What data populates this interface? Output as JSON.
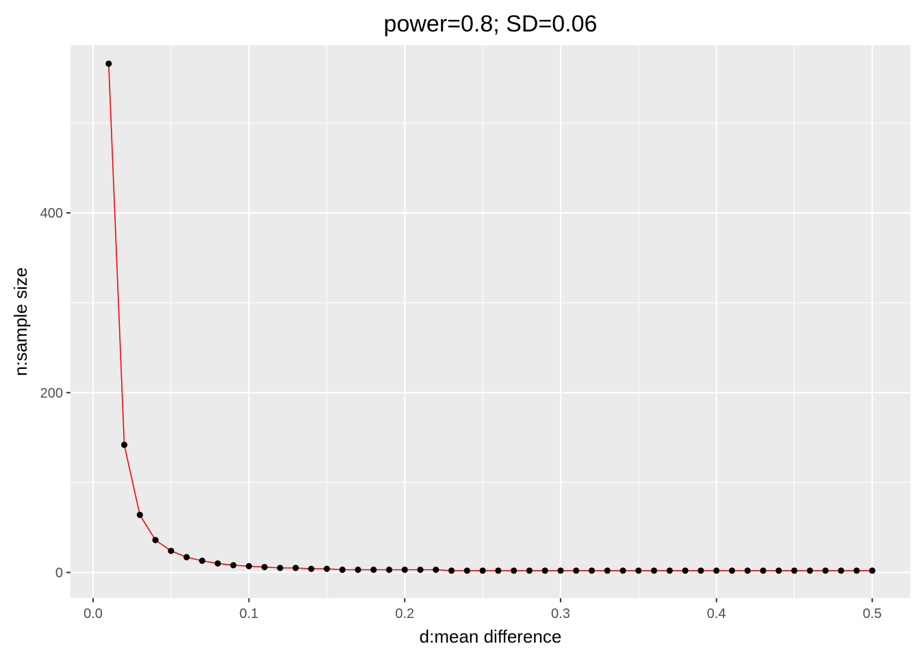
{
  "chart_data": {
    "type": "line",
    "title": "power=0.8; SD=0.06",
    "xlabel": "d:mean difference",
    "ylabel": "n:sample size",
    "xlim": [
      -0.0145,
      0.5245
    ],
    "ylim": [
      -28.6,
      586.6
    ],
    "x_ticks": [
      0.0,
      0.1,
      0.2,
      0.3,
      0.4,
      0.5
    ],
    "x_tick_labels": [
      "0.0",
      "0.1",
      "0.2",
      "0.3",
      "0.4",
      "0.5"
    ],
    "y_ticks": [
      0,
      200,
      400
    ],
    "y_tick_labels": [
      "0",
      "200",
      "400"
    ],
    "y_minor_ticks": [
      100,
      300,
      500
    ],
    "grid": true,
    "legend": "none",
    "colors": {
      "panel": "#ebebeb",
      "grid": "#ffffff",
      "line": "#ff0000",
      "points": "#000000",
      "tick_text": "#4d4d4d",
      "tick_mark": "#333333"
    },
    "series": [
      {
        "x": [
          0.01,
          0.02,
          0.03,
          0.04,
          0.05,
          0.06,
          0.07,
          0.08,
          0.09,
          0.1,
          0.11,
          0.12,
          0.13,
          0.14,
          0.15,
          0.16,
          0.17,
          0.18,
          0.19,
          0.2,
          0.21,
          0.22,
          0.23,
          0.24,
          0.25,
          0.26,
          0.27,
          0.28,
          0.29,
          0.3,
          0.31,
          0.32,
          0.33,
          0.34,
          0.35,
          0.36,
          0.37,
          0.38,
          0.39,
          0.4,
          0.41,
          0.42,
          0.43,
          0.44,
          0.45,
          0.46,
          0.47,
          0.48,
          0.49,
          0.5
        ],
        "values": [
          566,
          142,
          64,
          36,
          24,
          17,
          13,
          10,
          8,
          7,
          6,
          5,
          5,
          4,
          4,
          3,
          3,
          3,
          3,
          3,
          3,
          3,
          2,
          2,
          2,
          2,
          2,
          2,
          2,
          2,
          2,
          2,
          2,
          2,
          2,
          2,
          2,
          2,
          2,
          2,
          2,
          2,
          2,
          2,
          2,
          2,
          2,
          2,
          2,
          2
        ]
      }
    ]
  }
}
